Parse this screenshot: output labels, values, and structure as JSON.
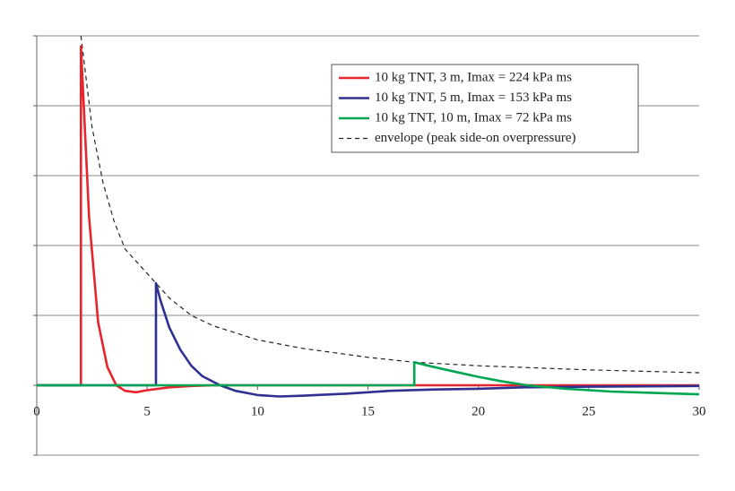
{
  "chart_data": {
    "type": "line",
    "xlim": [
      0,
      30
    ],
    "xticks": [
      0,
      5,
      10,
      15,
      20,
      25,
      30
    ],
    "ylim": [
      -1,
      5
    ],
    "yticks": [
      -1,
      0,
      1,
      2,
      3,
      4,
      5
    ],
    "grid": true,
    "legend": "upper right",
    "series": [
      {
        "name": "10 kg TNT, 3 m, Imax = 224 kPa ms",
        "color": "#e8242c",
        "linestyle": "solid",
        "x": [
          0,
          2,
          2,
          2.37,
          2.78,
          3.2,
          3.6,
          4.0,
          4.5,
          5,
          6,
          7,
          8,
          30
        ],
        "values": [
          0,
          0,
          4.85,
          2.4,
          0.9,
          0.26,
          0,
          -0.08,
          -0.1,
          -0.07,
          -0.03,
          -0.01,
          0,
          0
        ]
      },
      {
        "name": "10 kg TNT, 5 m, Imax = 153 kPa ms",
        "color": "#2e3192",
        "linestyle": "solid",
        "x": [
          0,
          5.4,
          5.4,
          5.6,
          6,
          6.5,
          7,
          7.5,
          8.3,
          9,
          10,
          11,
          12,
          14,
          16,
          18,
          20,
          22,
          25,
          30
        ],
        "values": [
          0,
          0,
          1.46,
          1.22,
          0.83,
          0.51,
          0.28,
          0.13,
          0,
          -0.08,
          -0.14,
          -0.16,
          -0.15,
          -0.12,
          -0.08,
          -0.06,
          -0.05,
          -0.03,
          -0.02,
          -0.01
        ]
      },
      {
        "name": "10 kg TNT, 10 m, Imax = 72 kPa ms",
        "color": "#00a651",
        "linestyle": "solid",
        "x": [
          0,
          17.1,
          17.1,
          18,
          19,
          20,
          21,
          22.2,
          24,
          26,
          28,
          30
        ],
        "values": [
          0,
          0,
          0.33,
          0.26,
          0.19,
          0.12,
          0.06,
          0,
          -0.05,
          -0.09,
          -0.11,
          -0.13
        ]
      },
      {
        "name": "envelope (peak side-on overpressure)",
        "color": "#222222",
        "linestyle": "dashed",
        "x": [
          2,
          2.5,
          3,
          3.5,
          4,
          5,
          5.4,
          6,
          7,
          8,
          10,
          12,
          15,
          17.1,
          20,
          25,
          30
        ],
        "values": [
          5.0,
          3.7,
          2.9,
          2.35,
          1.95,
          1.6,
          1.46,
          1.25,
          1.0,
          0.85,
          0.65,
          0.53,
          0.4,
          0.33,
          0.28,
          0.22,
          0.18
        ]
      }
    ]
  }
}
